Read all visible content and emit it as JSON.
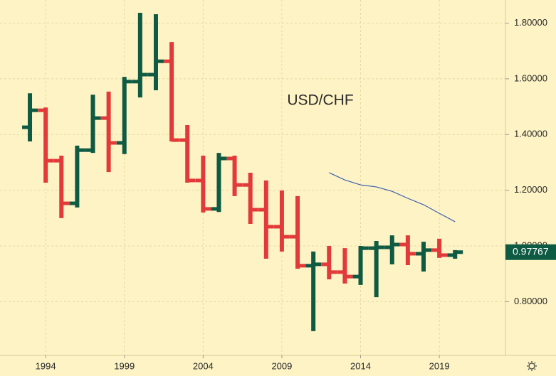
{
  "chart_data": {
    "type": "ohlc",
    "annotation": "USD/CHF",
    "x": [
      1993,
      1994,
      1995,
      1996,
      1997,
      1998,
      1999,
      2000,
      2001,
      2002,
      2003,
      2004,
      2005,
      2006,
      2007,
      2008,
      2009,
      2010,
      2011,
      2012,
      2013,
      2014,
      2015,
      2016,
      2017,
      2018,
      2019,
      2020
    ],
    "open": [
      1.426,
      1.487,
      1.306,
      1.153,
      1.344,
      1.459,
      1.37,
      1.59,
      1.615,
      1.663,
      1.38,
      1.235,
      1.133,
      1.314,
      1.219,
      1.13,
      1.069,
      1.033,
      0.929,
      0.934,
      0.906,
      0.89,
      0.992,
      0.995,
      1.005,
      0.972,
      0.985,
      0.967
    ],
    "high": [
      1.548,
      1.497,
      1.324,
      1.36,
      1.543,
      1.554,
      1.607,
      1.837,
      1.832,
      1.732,
      1.434,
      1.324,
      1.334,
      1.324,
      1.263,
      1.235,
      1.199,
      1.179,
      0.98,
      1.0,
      0.992,
      1.0,
      1.018,
      1.038,
      1.038,
      1.015,
      1.026,
      0.985
    ],
    "low": [
      1.375,
      1.227,
      1.1,
      1.138,
      1.334,
      1.265,
      1.33,
      1.533,
      1.559,
      1.375,
      1.227,
      1.12,
      1.122,
      1.179,
      1.079,
      0.954,
      0.98,
      0.918,
      0.694,
      0.88,
      0.865,
      0.86,
      0.816,
      0.934,
      0.931,
      0.908,
      0.957,
      0.954
    ],
    "close": [
      1.487,
      1.306,
      1.153,
      1.344,
      1.459,
      1.37,
      1.59,
      1.615,
      1.663,
      1.38,
      1.235,
      1.133,
      1.314,
      1.219,
      1.13,
      1.069,
      1.033,
      0.929,
      0.934,
      0.906,
      0.89,
      0.992,
      0.995,
      1.005,
      0.972,
      0.985,
      0.967,
      0.97767
    ],
    "up_color": "#0e5a43",
    "down_color": "#e23a3a",
    "line": {
      "color": "#3d5fb0",
      "values": [
        null,
        null,
        null,
        null,
        null,
        null,
        null,
        null,
        null,
        null,
        null,
        null,
        null,
        null,
        null,
        null,
        null,
        null,
        null,
        1.263,
        1.237,
        1.219,
        1.212,
        1.196,
        1.171,
        1.148,
        1.117,
        1.087
      ]
    },
    "xlim": [
      1991.1,
      2023.2
    ],
    "xticks": [
      1994,
      1999,
      2004,
      2009,
      2014,
      2019
    ],
    "ylim": [
      0.607,
      1.883
    ],
    "yticks": [
      {
        "value": 0.8,
        "label": "0.80000"
      },
      {
        "value": 1.0,
        "label": "1.00000"
      },
      {
        "value": 1.2,
        "label": "1.20000"
      },
      {
        "value": 1.4,
        "label": "1.40000"
      },
      {
        "value": 1.6,
        "label": "1.60000"
      },
      {
        "value": 1.8,
        "label": "1.80000"
      }
    ],
    "last_price": {
      "value": 0.97767,
      "label": "0.97767"
    },
    "grid": true
  }
}
